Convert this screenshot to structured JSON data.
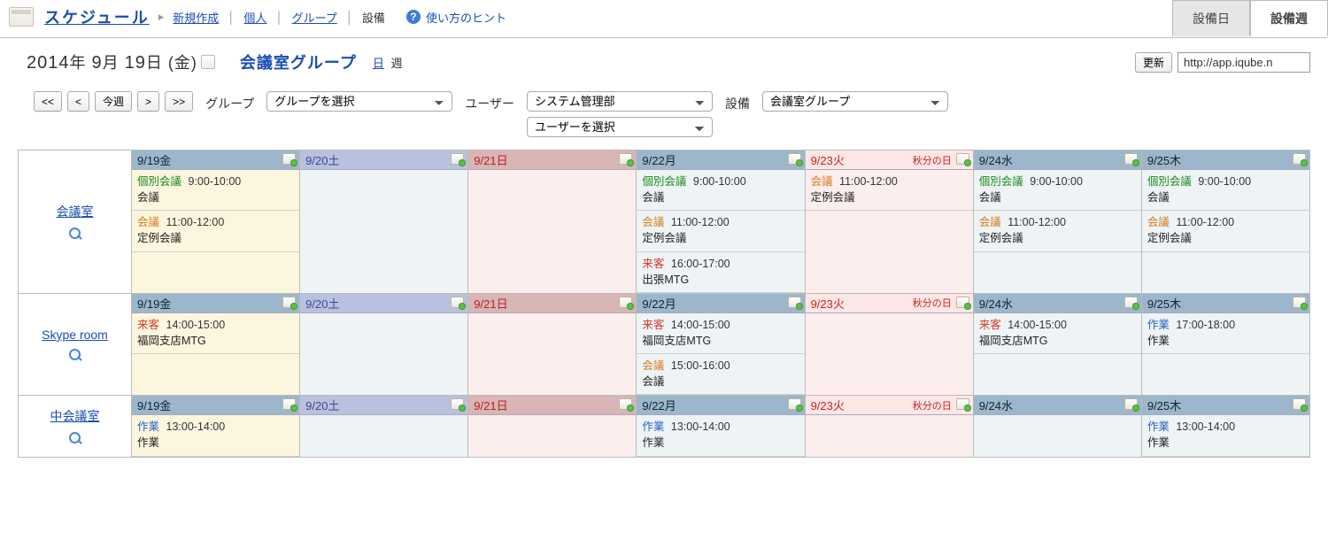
{
  "nav": {
    "main": "スケジュール",
    "links": [
      "新規作成",
      "個人",
      "グループ"
    ],
    "static": "設備",
    "hint": "使い方のヒント"
  },
  "top_tabs": {
    "inactive": "設備日",
    "active": "設備週"
  },
  "date": {
    "year": "2014",
    "y_suf": "年",
    "month": "9",
    "m_suf": "月",
    "day": "19",
    "d_suf": "日",
    "weekday": "(金)"
  },
  "group_name": "会議室グループ",
  "view_links": {
    "day": "日",
    "week": "週"
  },
  "url": {
    "update_btn": "更新",
    "value": "http://app.iqube.n"
  },
  "navbtns": {
    "first": "<<",
    "prev": "<",
    "today": "今週",
    "next": ">",
    "last": ">>"
  },
  "filters": {
    "group_label": "グループ",
    "group_placeholder": "グループを選択",
    "user_label": "ユーザー",
    "user_dept": "システム管理部",
    "user_placeholder": "ユーザーを選択",
    "fac_label": "設備",
    "fac_value": "会議室グループ"
  },
  "days": [
    {
      "short": "9/19金",
      "head": "blue",
      "body": "yellow"
    },
    {
      "short": "9/20土",
      "head": "pblue",
      "body": "ltblue"
    },
    {
      "short": "9/21日",
      "head": "pink",
      "body": "pink"
    },
    {
      "short": "9/22月",
      "head": "blue",
      "body": "ltblue"
    },
    {
      "short": "9/23火",
      "head": "red",
      "body": "pink",
      "extra": "秋分の日"
    },
    {
      "short": "9/24水",
      "head": "blue",
      "body": "ltblue"
    },
    {
      "short": "9/25木",
      "head": "blue",
      "body": "ltblue"
    }
  ],
  "rooms": [
    {
      "name": "会議室",
      "events_by_day": [
        [
          {
            "tag": "個別会議",
            "cls": "green",
            "time": "9:00-10:00",
            "title": "会議"
          },
          {
            "tag": "会議",
            "cls": "orange",
            "time": "11:00-12:00",
            "title": "定例会議"
          }
        ],
        [],
        [],
        [
          {
            "tag": "個別会議",
            "cls": "green",
            "time": "9:00-10:00",
            "title": "会議"
          },
          {
            "tag": "会議",
            "cls": "orange",
            "time": "11:00-12:00",
            "title": "定例会議"
          },
          {
            "tag": "来客",
            "cls": "red",
            "time": "16:00-17:00",
            "title": "出張MTG"
          }
        ],
        [
          {
            "tag": "会議",
            "cls": "orange",
            "time": "11:00-12:00",
            "title": "定例会議"
          }
        ],
        [
          {
            "tag": "個別会議",
            "cls": "green",
            "time": "9:00-10:00",
            "title": "会議"
          },
          {
            "tag": "会議",
            "cls": "orange",
            "time": "11:00-12:00",
            "title": "定例会議"
          }
        ],
        [
          {
            "tag": "個別会議",
            "cls": "green",
            "time": "9:00-10:00",
            "title": "会議"
          },
          {
            "tag": "会議",
            "cls": "orange",
            "time": "11:00-12:00",
            "title": "定例会議"
          }
        ]
      ]
    },
    {
      "name": "Skype room",
      "events_by_day": [
        [
          {
            "tag": "来客",
            "cls": "red",
            "time": "14:00-15:00",
            "title": "福岡支店MTG"
          }
        ],
        [],
        [],
        [
          {
            "tag": "来客",
            "cls": "red",
            "time": "14:00-15:00",
            "title": "福岡支店MTG"
          },
          {
            "tag": "会議",
            "cls": "orange",
            "time": "15:00-16:00",
            "title": "会議"
          }
        ],
        [],
        [
          {
            "tag": "来客",
            "cls": "red",
            "time": "14:00-15:00",
            "title": "福岡支店MTG"
          }
        ],
        [
          {
            "tag": "作業",
            "cls": "blue",
            "time": "17:00-18:00",
            "title": "作業"
          }
        ]
      ]
    },
    {
      "name": "中会議室",
      "events_by_day": [
        [
          {
            "tag": "作業",
            "cls": "blue",
            "time": "13:00-14:00",
            "title": "作業"
          }
        ],
        [],
        [],
        [
          {
            "tag": "作業",
            "cls": "blue",
            "time": "13:00-14:00",
            "title": "作業"
          }
        ],
        [],
        [],
        [
          {
            "tag": "作業",
            "cls": "blue",
            "time": "13:00-14:00",
            "title": "作業"
          }
        ]
      ]
    }
  ]
}
